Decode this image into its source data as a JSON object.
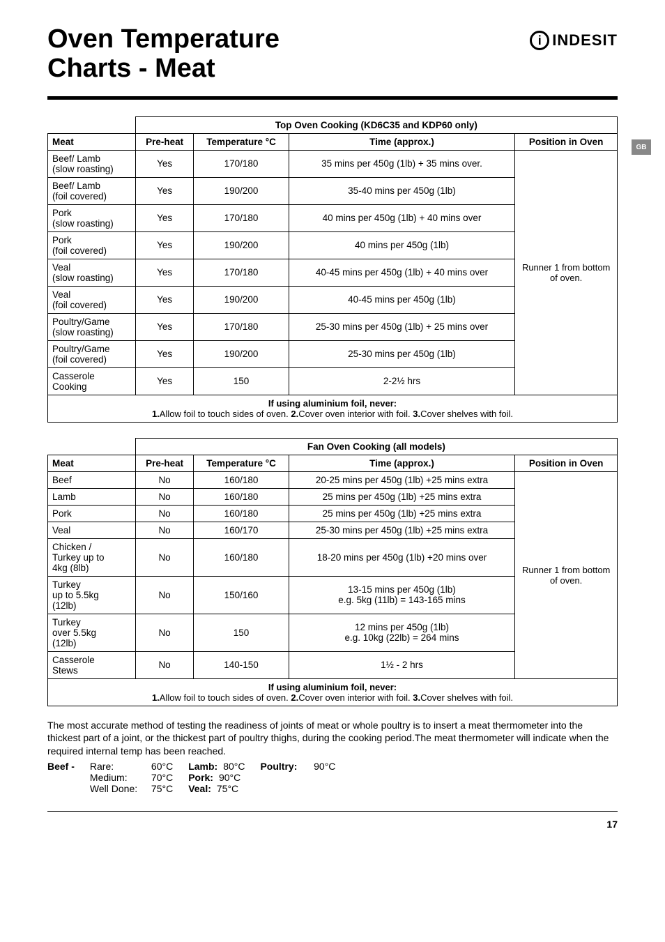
{
  "page": {
    "title_line1": "Oven Temperature",
    "title_line2": "Charts - Meat",
    "brand": "INDESIT",
    "side_tab": "GB",
    "page_number": "17"
  },
  "top_oven": {
    "section_title": "Top Oven Cooking (KD6C35 and KDP60 only)",
    "headers": {
      "c1": "Meat",
      "c2": "Pre-heat",
      "c3": "Temperature °C",
      "c4": "Time (approx.)",
      "c5": "Position in Oven"
    },
    "position_text": "Runner 1 from bottom of oven.",
    "rows": [
      {
        "meat": [
          "Beef/ Lamb",
          "(slow roasting)"
        ],
        "pre": "Yes",
        "temp": "170/180",
        "time": "35 mins per 450g (1lb) + 35 mins over."
      },
      {
        "meat": [
          "Beef/ Lamb",
          "(foil covered)"
        ],
        "pre": "Yes",
        "temp": "190/200",
        "time": "35-40 mins per 450g (1lb)"
      },
      {
        "meat": [
          "Pork",
          "(slow roasting)"
        ],
        "pre": "Yes",
        "temp": "170/180",
        "time": "40 mins per 450g (1lb) + 40 mins over"
      },
      {
        "meat": [
          "Pork",
          "(foil covered)"
        ],
        "pre": "Yes",
        "temp": "190/200",
        "time": "40 mins per 450g (1lb)"
      },
      {
        "meat": [
          "Veal",
          "(slow roasting)"
        ],
        "pre": "Yes",
        "temp": "170/180",
        "time": "40-45 mins per 450g (1lb) + 40 mins over"
      },
      {
        "meat": [
          "Veal",
          "(foil covered)"
        ],
        "pre": "Yes",
        "temp": "190/200",
        "time": "40-45 mins per 450g (1lb)"
      },
      {
        "meat": [
          "Poultry/Game",
          "(slow roasting)"
        ],
        "pre": "Yes",
        "temp": "170/180",
        "time": "25-30 mins per 450g (1lb) + 25 mins over"
      },
      {
        "meat": [
          "Poultry/Game",
          "(foil covered)"
        ],
        "pre": "Yes",
        "temp": "190/200",
        "time": "25-30 mins per 450g (1lb)"
      },
      {
        "meat": [
          "Casserole",
          "Cooking"
        ],
        "pre": "Yes",
        "temp": "150",
        "time": "2-2½ hrs"
      }
    ]
  },
  "fan_oven": {
    "section_title": "Fan Oven Cooking (all models)",
    "headers": {
      "c1": "Meat",
      "c2": "Pre-heat",
      "c3": "Temperature °C",
      "c4": "Time (approx.)",
      "c5": "Position in Oven"
    },
    "position_text": "Runner 1 from bottom of oven.",
    "rows": [
      {
        "meat": [
          "Beef"
        ],
        "pre": "No",
        "temp": "160/180",
        "time": "20-25 mins per 450g (1lb) +25 mins extra"
      },
      {
        "meat": [
          "Lamb"
        ],
        "pre": "No",
        "temp": "160/180",
        "time": "25 mins per 450g (1lb) +25 mins extra"
      },
      {
        "meat": [
          "Pork"
        ],
        "pre": "No",
        "temp": "160/180",
        "time": "25 mins per 450g (1lb) +25 mins extra"
      },
      {
        "meat": [
          "Veal"
        ],
        "pre": "No",
        "temp": "160/170",
        "time": "25-30 mins per 450g (1lb) +25 mins extra"
      },
      {
        "meat": [
          "Chicken /",
          "Turkey up to",
          "4kg (8lb)"
        ],
        "pre": "No",
        "temp": "160/180",
        "time": "18-20 mins per 450g (1lb) +20 mins over"
      },
      {
        "meat": [
          "Turkey",
          "up to 5.5kg",
          "(12lb)"
        ],
        "pre": "No",
        "temp": "150/160",
        "time": [
          "13-15 mins per 450g (1lb)",
          "e.g. 5kg (11lb) = 143-165 mins"
        ]
      },
      {
        "meat": [
          "Turkey",
          "over 5.5kg",
          "(12lb)"
        ],
        "pre": "No",
        "temp": "150",
        "time": [
          "12 mins per 450g (1lb)",
          "e.g. 10kg (22lb) = 264 mins"
        ]
      },
      {
        "meat": [
          "Casserole",
          "Stews"
        ],
        "pre": "No",
        "temp": "140-150",
        "time": "1½ - 2 hrs"
      }
    ]
  },
  "foil_note": {
    "title": "If using aluminium foil, never:",
    "items": [
      "1.",
      "Allow foil to touch sides of oven. ",
      "2.",
      "Cover oven interior with foil. ",
      "3.",
      "Cover shelves with foil."
    ]
  },
  "thermometer": {
    "text": "The most accurate method of testing the readiness of joints of meat or whole poultry is to insert a meat thermometer into the thickest part of a joint, or the thickest part of poultry thighs, during the cooking period.The meat thermometer will indicate when the required internal temp has been reached.",
    "beef_label": "Beef -",
    "beef": [
      {
        "name": "Rare:",
        "val": "60°C"
      },
      {
        "name": "Medium:",
        "val": "70°C"
      },
      {
        "name": "Well Done:",
        "val": "75°C"
      }
    ],
    "lamb": {
      "label": "Lamb:",
      "val": "80°C"
    },
    "pork": {
      "label": "Pork:",
      "val": "90°C"
    },
    "veal": {
      "label": "Veal:",
      "val": "75°C"
    },
    "poultry": {
      "label": "Poultry:",
      "val": "90°C"
    }
  }
}
